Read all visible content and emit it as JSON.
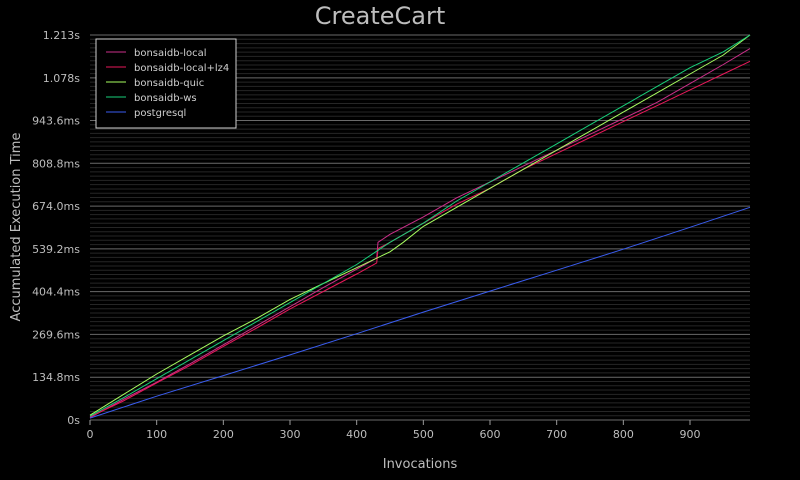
{
  "chart_data": {
    "type": "line",
    "title": "CreateCart",
    "xlabel": "Invocations",
    "ylabel": "Accumulated Execution Time",
    "xlim": [
      0,
      990
    ],
    "ylim": [
      0,
      1.213
    ],
    "x_ticks": [
      0,
      100,
      200,
      300,
      400,
      500,
      600,
      700,
      800,
      900
    ],
    "x_tick_labels": [
      "0",
      "100",
      "200",
      "300",
      "400",
      "500",
      "600",
      "700",
      "800",
      "900"
    ],
    "y_ticks": [
      0,
      0.1348,
      0.2696,
      0.4044,
      0.5392,
      0.674,
      0.8088,
      0.9436,
      1.078,
      1.213
    ],
    "y_tick_labels": [
      "0s",
      "134.8ms",
      "269.6ms",
      "404.4ms",
      "539.2ms",
      "674.0ms",
      "808.8ms",
      "943.6ms",
      "1.078s",
      "1.213s"
    ],
    "legend_position": "top-left",
    "grid": true,
    "series": [
      {
        "name": "bonsaidb-local",
        "color": "#cc2f8a",
        "x": [
          0,
          50,
          100,
          150,
          200,
          250,
          300,
          350,
          400,
          430,
          432,
          450,
          500,
          550,
          600,
          650,
          700,
          750,
          800,
          850,
          900,
          950,
          990
        ],
        "y": [
          0.008,
          0.065,
          0.119,
          0.177,
          0.237,
          0.297,
          0.357,
          0.417,
          0.475,
          0.51,
          0.56,
          0.585,
          0.64,
          0.7,
          0.75,
          0.8,
          0.85,
          0.9,
          0.95,
          1.0,
          1.06,
          1.12,
          1.17
        ]
      },
      {
        "name": "bonsaidb-local+lz4",
        "color": "#e8185a",
        "x": [
          0,
          50,
          100,
          150,
          200,
          250,
          300,
          350,
          400,
          430,
          432,
          450,
          500,
          550,
          600,
          650,
          700,
          750,
          800,
          850,
          900,
          950,
          990
        ],
        "y": [
          0.01,
          0.06,
          0.117,
          0.172,
          0.232,
          0.29,
          0.35,
          0.405,
          0.46,
          0.495,
          0.54,
          0.56,
          0.62,
          0.68,
          0.73,
          0.79,
          0.84,
          0.89,
          0.94,
          0.99,
          1.04,
          1.09,
          1.13
        ]
      },
      {
        "name": "bonsaidb-quic",
        "color": "#a8ff60",
        "x": [
          0,
          50,
          100,
          150,
          200,
          250,
          300,
          350,
          400,
          450,
          470,
          500,
          550,
          600,
          650,
          700,
          750,
          800,
          850,
          900,
          950,
          990
        ],
        "y": [
          0.015,
          0.08,
          0.145,
          0.205,
          0.265,
          0.32,
          0.38,
          0.43,
          0.48,
          0.53,
          0.56,
          0.61,
          0.67,
          0.73,
          0.79,
          0.85,
          0.91,
          0.97,
          1.03,
          1.09,
          1.15,
          1.213
        ]
      },
      {
        "name": "bonsaidb-ws",
        "color": "#18d07a",
        "x": [
          0,
          50,
          100,
          150,
          200,
          250,
          300,
          350,
          400,
          450,
          500,
          550,
          600,
          650,
          700,
          750,
          800,
          850,
          900,
          950,
          990
        ],
        "y": [
          0.012,
          0.07,
          0.13,
          0.19,
          0.25,
          0.31,
          0.37,
          0.43,
          0.49,
          0.56,
          0.62,
          0.69,
          0.75,
          0.81,
          0.87,
          0.93,
          0.99,
          1.05,
          1.11,
          1.16,
          1.213
        ]
      },
      {
        "name": "postgresql",
        "color": "#3a5df0",
        "x": [
          0,
          100,
          200,
          300,
          400,
          500,
          600,
          700,
          800,
          900,
          990
        ],
        "y": [
          0.006,
          0.075,
          0.14,
          0.205,
          0.272,
          0.34,
          0.406,
          0.472,
          0.538,
          0.607,
          0.67
        ]
      }
    ]
  }
}
